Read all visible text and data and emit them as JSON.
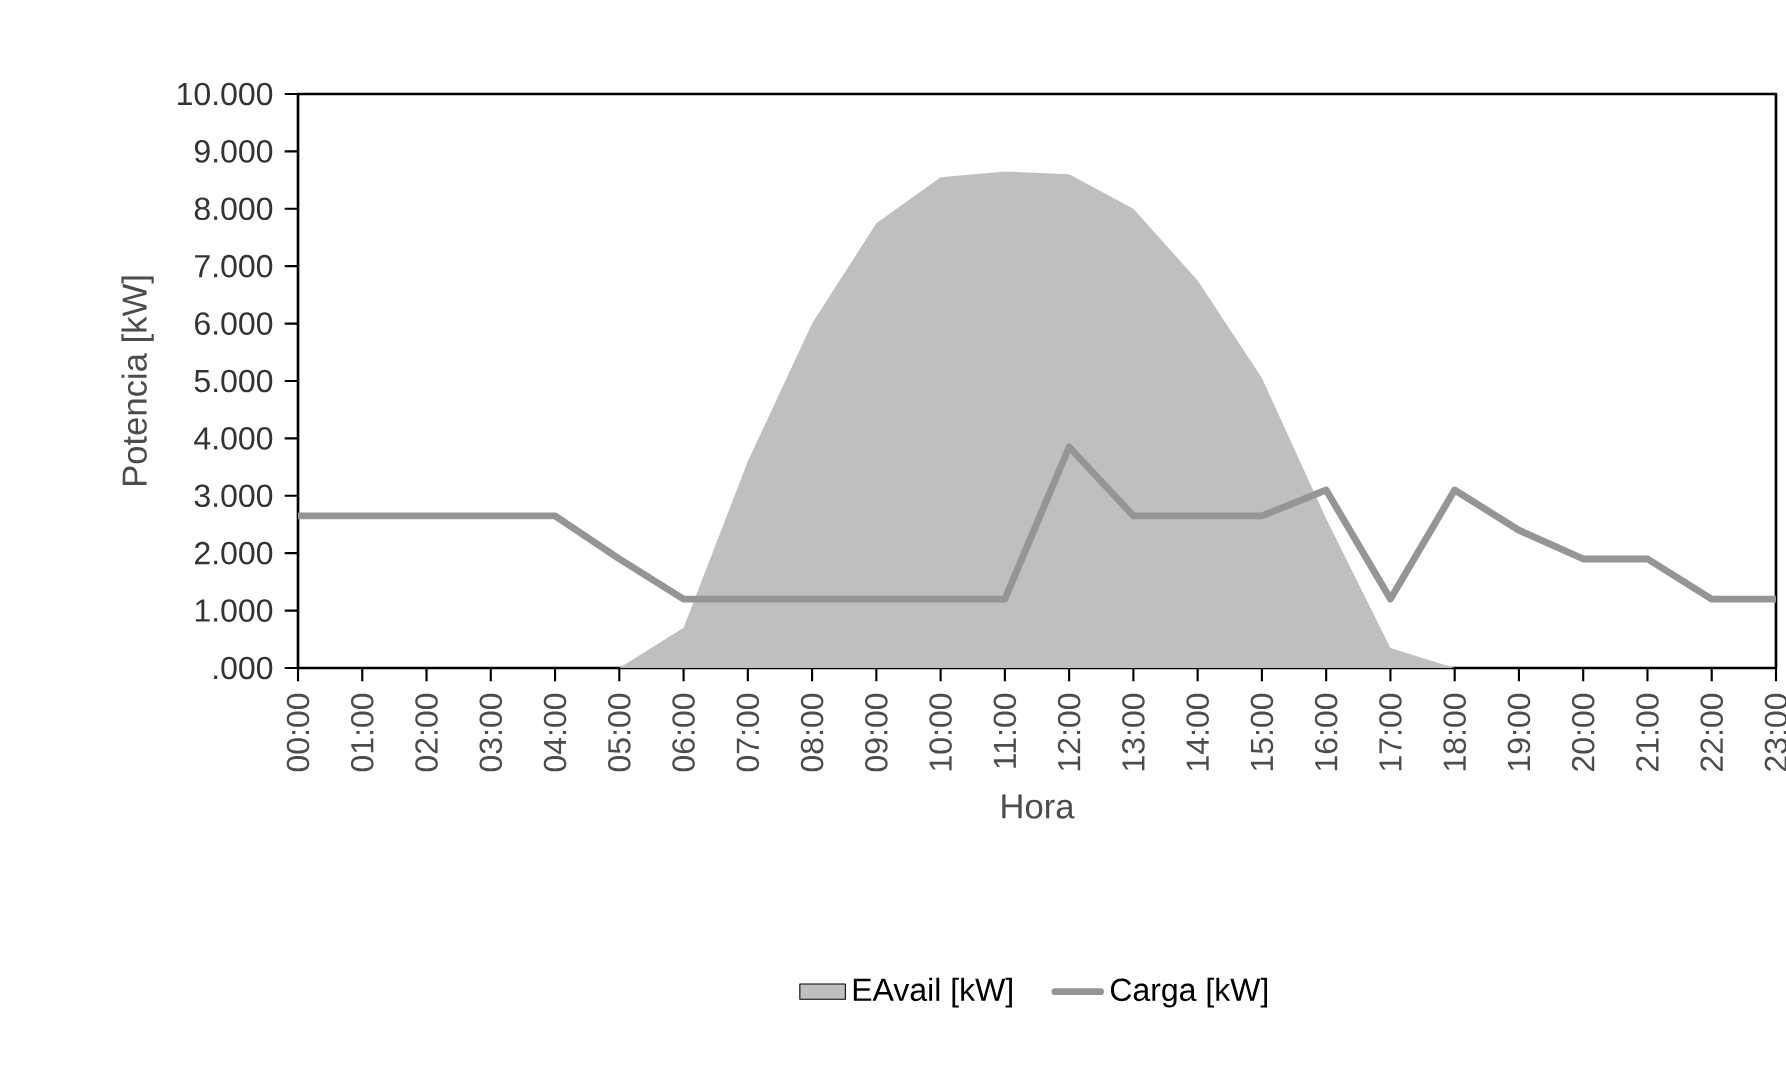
{
  "chart_data": {
    "type": "area",
    "xlabel": "Hora",
    "ylabel": "Potencia [kW]",
    "categories": [
      "00:00",
      "01:00",
      "02:00",
      "03:00",
      "04:00",
      "05:00",
      "06:00",
      "07:00",
      "08:00",
      "09:00",
      "10:00",
      "11:00",
      "12:00",
      "13:00",
      "14:00",
      "15:00",
      "16:00",
      "17:00",
      "18:00",
      "19:00",
      "20:00",
      "21:00",
      "22:00",
      "23:00"
    ],
    "series": [
      {
        "name": "EAvail [kW]",
        "color": "#bfbfbf",
        "values": [
          0,
          0,
          0,
          0,
          0,
          0,
          700,
          3600,
          6000,
          7750,
          8550,
          8650,
          8600,
          8000,
          6750,
          5050,
          2600,
          350,
          0,
          0,
          0,
          0,
          0,
          0
        ]
      },
      {
        "name": "Carga [kW]",
        "type": "line",
        "color": "#959595",
        "values": [
          2650,
          2650,
          2650,
          2650,
          2650,
          1900,
          1200,
          1200,
          1200,
          1200,
          1200,
          1200,
          3850,
          2650,
          2650,
          2650,
          3100,
          1200,
          3100,
          2400,
          1900,
          1900,
          1200,
          1200
        ]
      }
    ],
    "ylim": [
      0,
      10000
    ],
    "yticks": [
      {
        "value": 0,
        "label": ".000"
      },
      {
        "value": 1000,
        "label": "1.000"
      },
      {
        "value": 2000,
        "label": "2.000"
      },
      {
        "value": 3000,
        "label": "3.000"
      },
      {
        "value": 4000,
        "label": "4.000"
      },
      {
        "value": 5000,
        "label": "5.000"
      },
      {
        "value": 6000,
        "label": "6.000"
      },
      {
        "value": 7000,
        "label": "7.000"
      },
      {
        "value": 8000,
        "label": "8.000"
      },
      {
        "value": 9000,
        "label": "9.000"
      },
      {
        "value": 10000,
        "label": "10.000"
      }
    ],
    "legend": "bottom",
    "marker": "none",
    "line_style": "solid"
  }
}
